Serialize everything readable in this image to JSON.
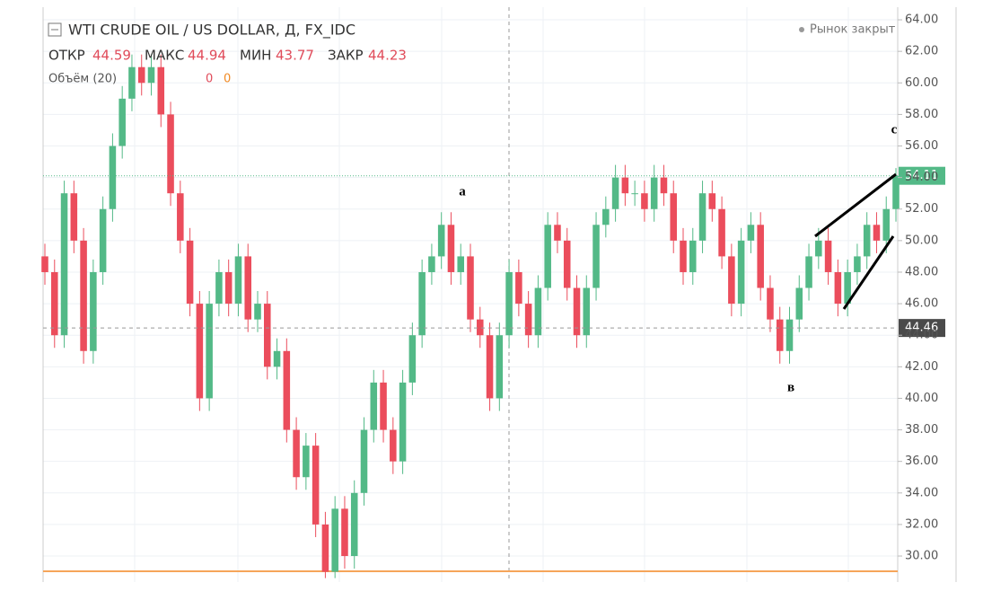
{
  "header": {
    "title": "WTI CRUDE OIL / US DOLLAR, Д, FX_IDC",
    "open_label": "ОТКР",
    "open": 44.59,
    "high_label": "МАКС",
    "high": 44.94,
    "low_label": "МИН",
    "low": 43.77,
    "close_label": "ЗАКР",
    "close": 44.23,
    "volume_label": "Объём (20)",
    "volume_a": 0,
    "volume_b": 0,
    "market_status": "Рынок закрыт"
  },
  "chart_data": {
    "type": "candlestick",
    "up_color": "#53b987",
    "down_color": "#eb4d5c",
    "open": [
      49,
      48,
      44,
      53,
      50,
      43,
      48,
      52,
      56,
      59,
      61,
      60,
      61,
      58,
      53,
      50,
      46,
      40,
      46,
      48,
      46,
      49,
      45,
      46,
      42,
      43,
      38,
      35,
      37,
      32,
      29,
      33,
      30,
      34,
      38,
      41,
      38,
      36,
      41,
      44,
      48,
      49,
      51,
      48,
      49,
      45,
      44,
      40,
      44,
      48,
      46,
      44,
      47,
      51,
      50,
      47,
      44,
      47,
      51,
      52,
      54,
      53,
      53,
      52,
      54,
      53,
      50,
      48,
      50,
      53,
      52,
      49,
      46,
      50,
      51,
      47,
      45,
      43,
      45,
      47,
      49,
      50,
      48,
      46,
      48,
      49,
      51,
      50,
      52
    ],
    "high": [
      49.8,
      48.8,
      53.8,
      53.8,
      50.8,
      48.8,
      52.8,
      56.8,
      59.8,
      61.8,
      61.8,
      61.8,
      61.8,
      58.8,
      53.8,
      50.8,
      46.8,
      46.8,
      48.8,
      48.8,
      49.8,
      49.8,
      46.8,
      46.8,
      43.8,
      43.8,
      38.8,
      37.8,
      37.8,
      32.8,
      33.8,
      33.8,
      34.8,
      38.8,
      41.8,
      41.8,
      38.8,
      41.8,
      44.8,
      48.8,
      49.8,
      51.8,
      51.8,
      49.8,
      49.8,
      45.8,
      44.8,
      44.8,
      48.8,
      48.8,
      46.8,
      47.8,
      51.8,
      51.8,
      50.8,
      47.8,
      47.8,
      51.8,
      52.8,
      54.8,
      54.8,
      53.8,
      53.8,
      54.8,
      54.8,
      53.8,
      50.8,
      50.8,
      53.8,
      53.8,
      52.8,
      49.8,
      50.8,
      51.8,
      51.8,
      47.8,
      45.8,
      45.8,
      47.8,
      49.8,
      50.8,
      50.8,
      48.8,
      48.8,
      49.8,
      51.8,
      51.8,
      52.8,
      54.6
    ],
    "low": [
      47.2,
      43.2,
      43.2,
      49.2,
      42.2,
      42.2,
      47.2,
      51.2,
      55.2,
      58.2,
      59.2,
      59.2,
      57.2,
      52.2,
      49.2,
      45.2,
      39.2,
      39.2,
      45.2,
      45.2,
      45.2,
      44.2,
      44.2,
      41.2,
      41.2,
      37.2,
      34.2,
      34.2,
      31.2,
      28.6,
      28.6,
      29.2,
      29.2,
      33.2,
      37.2,
      37.2,
      35.2,
      35.2,
      40.2,
      43.2,
      47.2,
      48.2,
      47.2,
      47.2,
      44.2,
      43.2,
      39.2,
      39.2,
      43.2,
      45.2,
      43.2,
      43.2,
      46.2,
      49.2,
      46.2,
      43.2,
      43.2,
      46.2,
      50.2,
      51.2,
      52.2,
      52.2,
      51.2,
      51.2,
      52.2,
      49.2,
      47.2,
      47.2,
      49.2,
      51.2,
      48.2,
      45.2,
      45.2,
      49.2,
      46.2,
      44.2,
      42.2,
      42.2,
      44.2,
      46.2,
      48.2,
      47.2,
      45.2,
      45.2,
      47.2,
      48.2,
      49.2,
      49.2,
      51.2
    ],
    "close": [
      48,
      44,
      53,
      50,
      43,
      48,
      52,
      56,
      59,
      61,
      60,
      61,
      58,
      53,
      50,
      46,
      40,
      46,
      48,
      46,
      49,
      45,
      46,
      42,
      43,
      38,
      35,
      37,
      32,
      29,
      33,
      30,
      34,
      38,
      41,
      38,
      36,
      41,
      44,
      48,
      49,
      51,
      48,
      49,
      45,
      44,
      40,
      44,
      48,
      46,
      44,
      47,
      51,
      50,
      47,
      44,
      47,
      51,
      52,
      54,
      53,
      53,
      52,
      54,
      53,
      50,
      48,
      50,
      53,
      52,
      49,
      46,
      50,
      51,
      47,
      45,
      43,
      45,
      47,
      49,
      50,
      48,
      46,
      48,
      49,
      51,
      50,
      52,
      54.11
    ],
    "ylim": [
      28.35,
      64.8
    ],
    "yticks": [
      {
        "value": 30,
        "label": "30.00"
      },
      {
        "value": 32,
        "label": "32.00"
      },
      {
        "value": 34,
        "label": "34.00"
      },
      {
        "value": 36,
        "label": "36.00"
      },
      {
        "value": 38,
        "label": "38.00"
      },
      {
        "value": 40,
        "label": "40.00"
      },
      {
        "value": 42,
        "label": "42.00"
      },
      {
        "value": 44,
        "label": "44.00"
      },
      {
        "value": 46,
        "label": "46.00"
      },
      {
        "value": 48,
        "label": "48.00"
      },
      {
        "value": 50,
        "label": "50.00"
      },
      {
        "value": 52,
        "label": "52.00"
      },
      {
        "value": 54,
        "label": "54.00"
      },
      {
        "value": 56,
        "label": "56.00"
      },
      {
        "value": 58,
        "label": "58.00"
      },
      {
        "value": 60,
        "label": "60.00"
      },
      {
        "value": 62,
        "label": "62.00"
      },
      {
        "value": 64,
        "label": "64.00"
      }
    ],
    "grid": true,
    "last_price": 54.11,
    "last_price_color": "#53b987",
    "cursor_price": 44.46,
    "cursor_color": "#4a4a4a",
    "annotations": [
      "a",
      "в",
      "c"
    ]
  }
}
